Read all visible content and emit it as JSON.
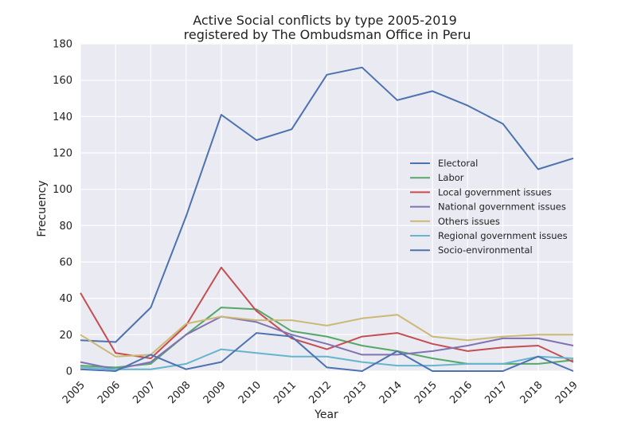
{
  "chart_data": {
    "type": "line",
    "title": "Active Social conflicts by type 2005-2019",
    "subtitle": "registered by The Ombudsman Office in Peru",
    "xlabel": "Year",
    "ylabel": "Frecuency",
    "x": [
      2005,
      2006,
      2007,
      2008,
      2009,
      2010,
      2011,
      2012,
      2013,
      2014,
      2015,
      2016,
      2017,
      2018,
      2019
    ],
    "x_tick_labels": [
      "2005",
      "2006",
      "2007",
      "2008",
      "2009",
      "2010",
      "2011",
      "2012",
      "2013",
      "2014",
      "2015",
      "2016",
      "2017",
      "2018",
      "2019"
    ],
    "y_ticks": [
      0,
      20,
      40,
      60,
      80,
      100,
      120,
      140,
      160,
      180
    ],
    "xlim": [
      2005,
      2019
    ],
    "ylim": [
      0,
      180
    ],
    "grid": true,
    "legend_position": "right",
    "series": [
      {
        "name": "Electoral",
        "color": "#4c72b0",
        "values": [
          17,
          16,
          35,
          85,
          141,
          127,
          133,
          163,
          167,
          149,
          154,
          146,
          136,
          111,
          117
        ]
      },
      {
        "name": "Labor",
        "color": "#55a868",
        "values": [
          3,
          2,
          4,
          20,
          35,
          34,
          22,
          19,
          14,
          11,
          7,
          4,
          4,
          4,
          6
        ]
      },
      {
        "name": "Local government issues",
        "color": "#c44e52",
        "values": [
          43,
          10,
          7,
          25,
          57,
          33,
          18,
          12,
          19,
          21,
          15,
          11,
          13,
          14,
          5
        ]
      },
      {
        "name": "National government issues",
        "color": "#8172b2",
        "values": [
          5,
          1,
          5,
          20,
          30,
          27,
          20,
          15,
          9,
          9,
          11,
          14,
          18,
          18,
          14
        ]
      },
      {
        "name": "Others issues",
        "color": "#ccb974",
        "values": [
          20,
          8,
          9,
          26,
          30,
          28,
          28,
          25,
          29,
          31,
          19,
          17,
          19,
          20,
          20
        ]
      },
      {
        "name": "Regional government issues",
        "color": "#64b5cd",
        "values": [
          2,
          1,
          1,
          4,
          12,
          10,
          8,
          8,
          5,
          3,
          3,
          4,
          4,
          8,
          7
        ]
      },
      {
        "name": "Socio-environmental",
        "color": "#4c72b0",
        "values": [
          1,
          0,
          9,
          1,
          5,
          21,
          19,
          2,
          0,
          11,
          0,
          0,
          0,
          8,
          0
        ]
      }
    ]
  }
}
